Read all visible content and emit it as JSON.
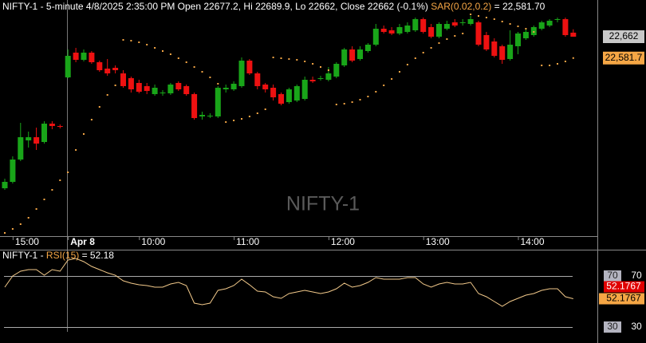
{
  "chart_data": [
    {
      "type": "candlestick",
      "title": "NIFTY-1 - 5-minute 4/8/2025 2:35:00 PM Open 22677.2, Hi 22689.9, Lo 22662, Close 22662 (-0.1%)",
      "watermark": "NIFTY-1",
      "categories": [
        null,
        "15:00",
        null,
        null,
        null,
        null,
        null,
        null,
        "Apr 8",
        null,
        null,
        null,
        null,
        null,
        null,
        null,
        null,
        "10:00",
        null,
        null,
        null,
        null,
        null,
        null,
        null,
        null,
        null,
        null,
        null,
        "11:00",
        null,
        null,
        null,
        null,
        null,
        null,
        null,
        null,
        null,
        null,
        null,
        "12:00",
        null,
        null,
        null,
        null,
        null,
        null,
        null,
        null,
        null,
        null,
        null,
        "13:00",
        null,
        null,
        null,
        null,
        null,
        null,
        null,
        null,
        null,
        null,
        null,
        "14:00",
        null,
        null,
        null,
        null,
        null,
        null,
        null
      ],
      "open": [
        22092,
        22116,
        22200,
        22272,
        22284,
        22266,
        22335,
        22326,
        22509,
        22602,
        22575,
        22602,
        22566,
        22542,
        22545,
        22524,
        22506,
        22488,
        22476,
        22446,
        22449,
        22449,
        22488,
        22476,
        22446,
        22362,
        22362,
        22362,
        22464,
        22464,
        22476,
        22572,
        22524,
        22482,
        22470,
        22446,
        22416,
        22422,
        22428,
        22500,
        22503,
        22500,
        22512,
        22554,
        22614,
        22578,
        22608,
        22632,
        22692,
        22686,
        22674,
        22680,
        22686,
        22728,
        22698,
        22662,
        22692,
        22716,
        22713,
        22710,
        22716,
        22668,
        22644,
        22626,
        22578,
        22626,
        22656,
        22668,
        22692,
        22704,
        22725,
        22728,
        22677.2
      ],
      "high": [
        22128,
        22212,
        22338,
        22305,
        22320,
        22344,
        22344,
        22332,
        22614,
        22620,
        22614,
        22608,
        22572,
        22578,
        22554,
        22536,
        22512,
        22500,
        22488,
        22482,
        22461,
        22488,
        22494,
        22482,
        22452,
        22380,
        22374,
        22476,
        22482,
        22494,
        22584,
        22578,
        22530,
        22488,
        22482,
        22452,
        22470,
        22482,
        22512,
        22512,
        22515,
        22548,
        22566,
        22620,
        22626,
        22626,
        22638,
        22710,
        22704,
        22698,
        22710,
        22716,
        22734,
        22734,
        22710,
        22716,
        22722,
        22728,
        22728,
        22740,
        22722,
        22680,
        22656,
        22632,
        22686,
        22680,
        22692,
        22704,
        22722,
        22728,
        22734,
        22734,
        22689.9
      ],
      "low": [
        22086,
        22110,
        22194,
        22245,
        22236,
        22260,
        22314,
        22317,
        22506,
        22566,
        22569,
        22560,
        22530,
        22515,
        22524,
        22470,
        22452,
        22449,
        22446,
        22440,
        22440,
        22443,
        22458,
        22440,
        22350,
        22350,
        22356,
        22356,
        22452,
        22458,
        22470,
        22518,
        22464,
        22452,
        22422,
        22404,
        22410,
        22416,
        22422,
        22488,
        22497,
        22494,
        22506,
        22548,
        22566,
        22572,
        22602,
        22626,
        22674,
        22668,
        22668,
        22674,
        22680,
        22674,
        22656,
        22656,
        22686,
        22698,
        22704,
        22704,
        22626,
        22608,
        22584,
        22560,
        22572,
        22596,
        22650,
        22662,
        22686,
        22698,
        22716,
        22662,
        22662
      ],
      "close": [
        22116,
        22200,
        22284,
        22284,
        22260,
        22335,
        22326,
        22323,
        22590,
        22575,
        22602,
        22566,
        22536,
        22524,
        22536,
        22476,
        22464,
        22455,
        22458,
        22470,
        22452,
        22482,
        22464,
        22446,
        22356,
        22368,
        22365,
        22470,
        22470,
        22485,
        22572,
        22524,
        22476,
        22464,
        22434,
        22410,
        22464,
        22476,
        22500,
        22494,
        22506,
        22524,
        22560,
        22614,
        22572,
        22614,
        22632,
        22692,
        22680,
        22674,
        22698,
        22704,
        22728,
        22680,
        22662,
        22710,
        22710,
        22704,
        22716,
        22728,
        22632,
        22614,
        22590,
        22575,
        22632,
        22674,
        22680,
        22698,
        22716,
        22722,
        22728,
        22668,
        22662
      ],
      "up_color": "#19a519",
      "down_color": "#ee1111",
      "series": [
        {
          "name": "SAR(0.02,0.2)",
          "readout": "= 22,581.70",
          "color": "#f5a645",
          "values": [
            21924,
            21939,
            21957,
            21981,
            22014,
            22050,
            22086,
            22122,
            22152,
            22236,
            22296,
            22350,
            22398,
            22443,
            22479,
            22650,
            22647,
            22641,
            22632,
            22620,
            22608,
            22596,
            22581,
            22566,
            22548,
            22530,
            22509,
            22485,
            22341,
            22347,
            22353,
            22362,
            22374,
            22389,
            22584,
            22581,
            22578,
            22575,
            22569,
            22560,
            22548,
            22536,
            22407,
            22410,
            22416,
            22425,
            22437,
            22455,
            22479,
            22503,
            22530,
            22557,
            22581,
            22602,
            22620,
            22638,
            22653,
            22665,
            22674,
            22746,
            22740,
            22734,
            22728,
            22719,
            22710,
            22701,
            22692,
            22680,
            22554,
            22554,
            22560,
            22569,
            22581.7
          ]
        }
      ],
      "price_labels": [
        {
          "value": 22662,
          "label": "22,662",
          "color": "#c8c8c8"
        },
        {
          "value": 22581.7,
          "label": "22,581.7",
          "color": "#f5a645"
        }
      ],
      "ylim": [
        21912,
        22800
      ]
    },
    {
      "type": "line",
      "title": "NIFTY-1 -",
      "name": "RSI(15)",
      "readout": "= 52.18",
      "color": "#f2c98a",
      "values": [
        61.25,
        70,
        73.75,
        75,
        75,
        70.6,
        75,
        73.75,
        82.5,
        83.75,
        81.25,
        77.5,
        75,
        72.5,
        70.6,
        66.25,
        64.4,
        63.1,
        62.5,
        61.25,
        61.25,
        63.75,
        65,
        62.5,
        48.75,
        47.5,
        48.75,
        58.75,
        60,
        62.5,
        67.5,
        63.1,
        58.1,
        57.5,
        53.75,
        52.5,
        56.25,
        57.5,
        58.75,
        57.5,
        56.25,
        57.5,
        60,
        64.4,
        61.25,
        62.5,
        65,
        68.75,
        67.5,
        67.5,
        67.5,
        68.75,
        68.75,
        63.75,
        61.25,
        63.75,
        65,
        63.75,
        63.75,
        65,
        56.25,
        53.75,
        50,
        46.25,
        50,
        52.5,
        55,
        56.25,
        58.75,
        60,
        60,
        53.75,
        52.1767
      ],
      "ylim": [
        18.75,
        88.75
      ],
      "yticks": [
        70,
        30
      ]
    }
  ]
}
